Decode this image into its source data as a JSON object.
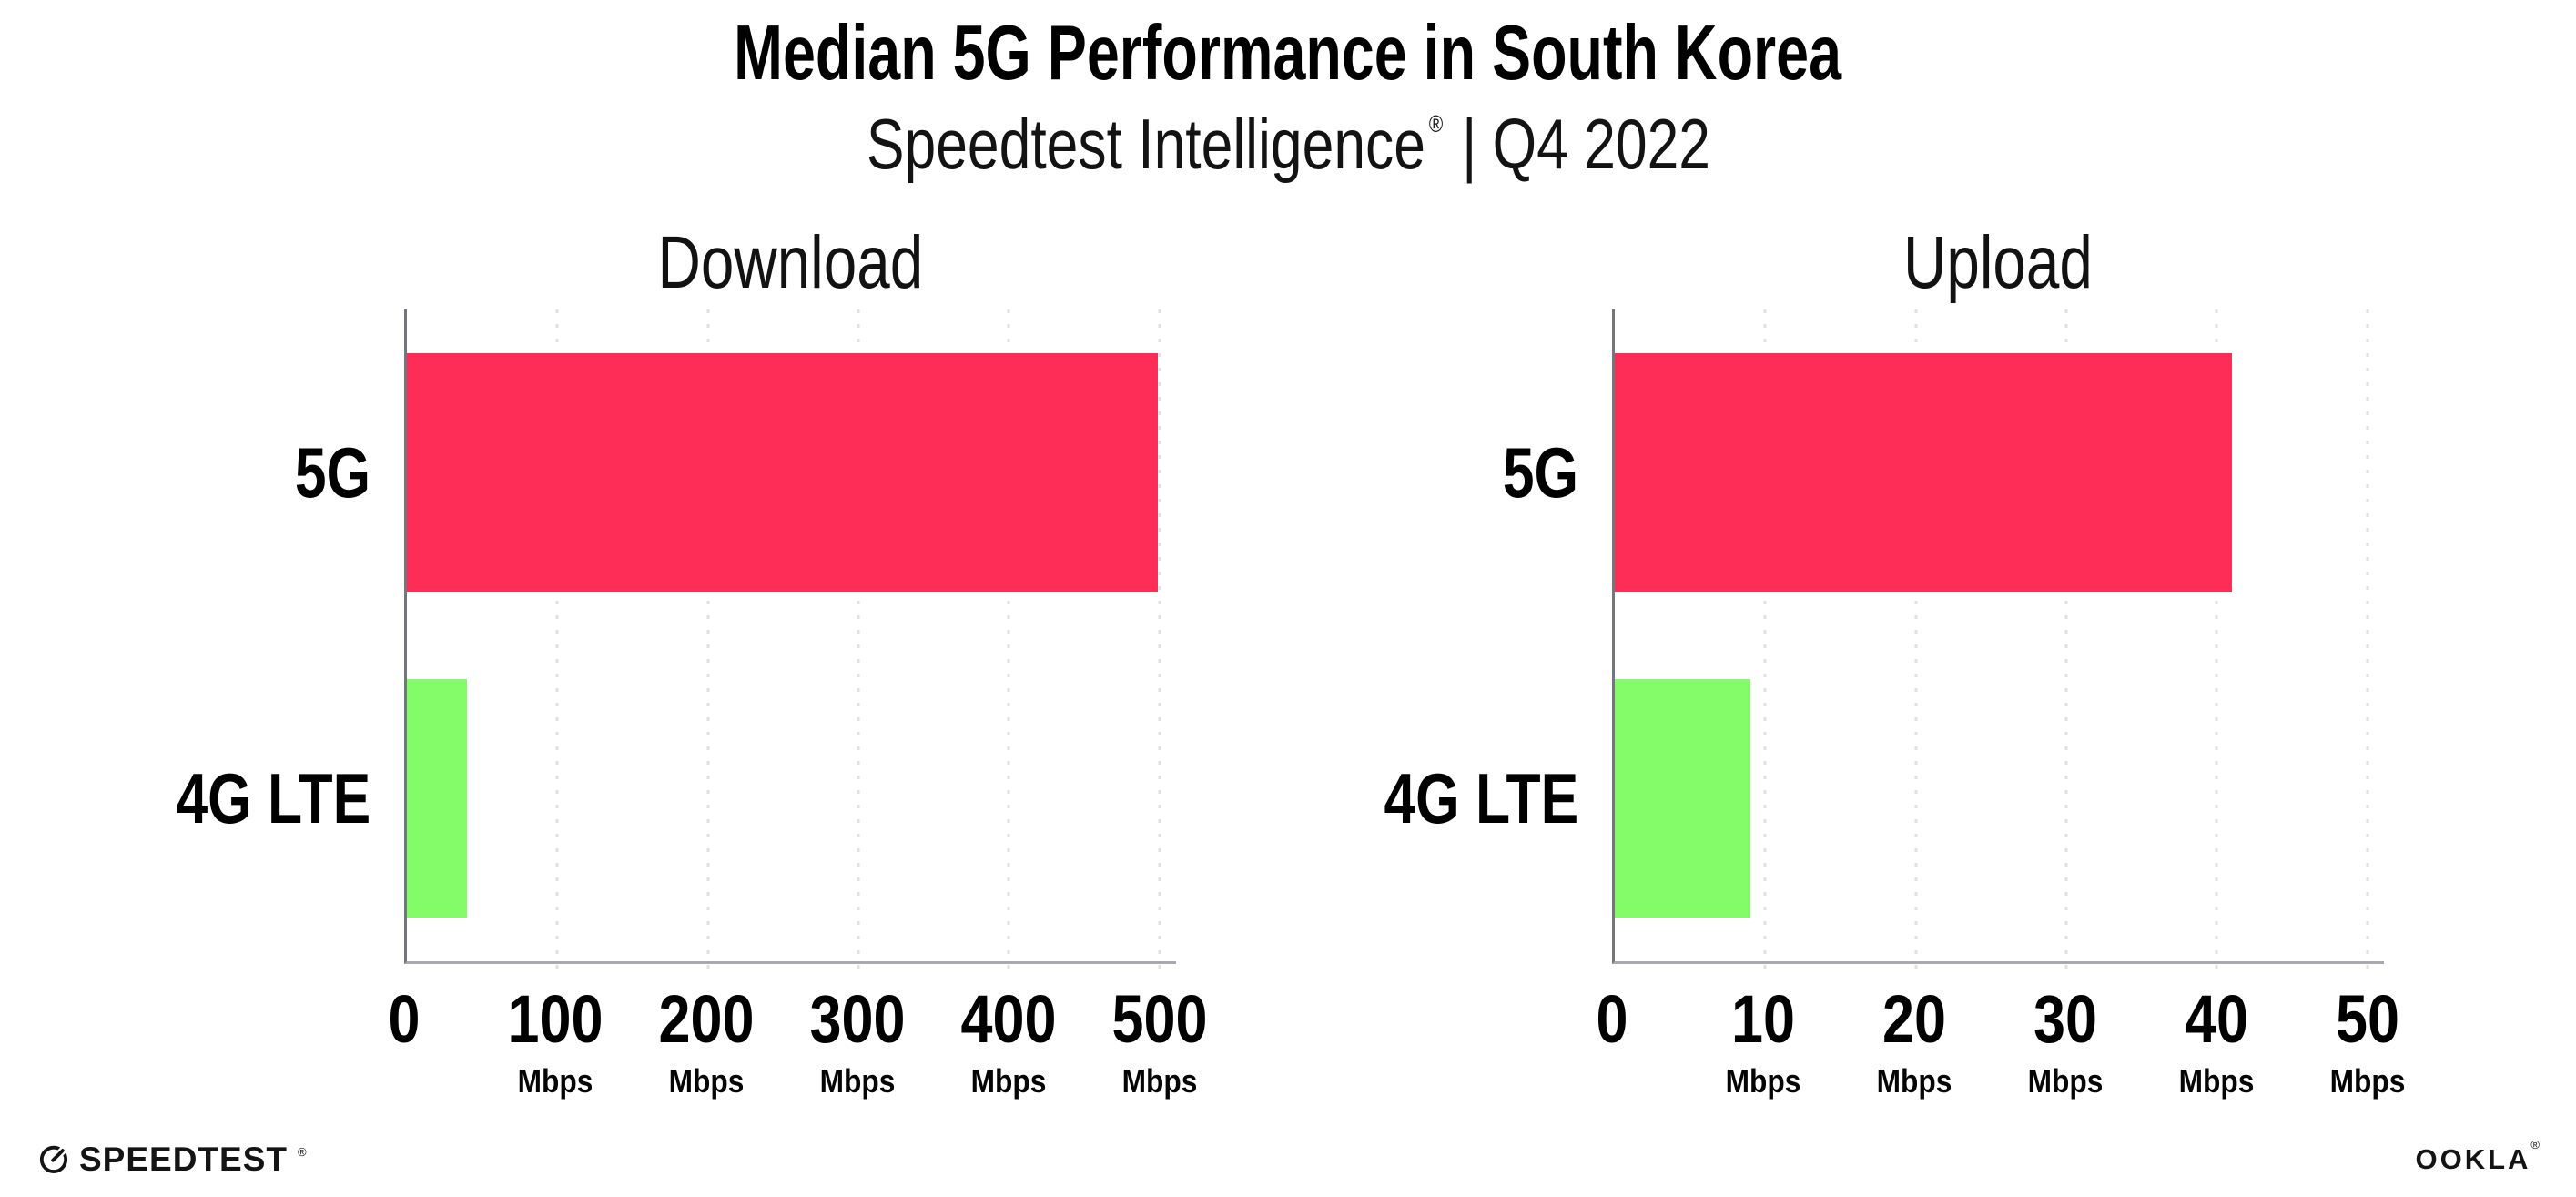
{
  "header": {
    "title": "Median 5G Performance in South Korea",
    "subtitle_brand": "Speedtest Intelligence",
    "subtitle_reg": "®",
    "subtitle_period": "| Q4 2022"
  },
  "chart_data": [
    {
      "type": "bar",
      "orientation": "horizontal",
      "title": "Download",
      "categories": [
        "5G",
        "4G LTE"
      ],
      "values": [
        499,
        40
      ],
      "unit": "Mbps",
      "xticks": [
        0,
        100,
        200,
        300,
        400,
        500
      ],
      "xlim": [
        0,
        511
      ],
      "grid": "dotted-vertical",
      "series_colors": [
        "#FD2D58",
        "#84FB69"
      ]
    },
    {
      "type": "bar",
      "orientation": "horizontal",
      "title": "Upload",
      "categories": [
        "5G",
        "4G LTE"
      ],
      "values": [
        41,
        9
      ],
      "unit": "Mbps",
      "xticks": [
        0,
        10,
        20,
        30,
        40,
        50
      ],
      "xlim": [
        0,
        51.1
      ],
      "grid": "dotted-vertical",
      "series_colors": [
        "#FD2D58",
        "#84FB69"
      ]
    }
  ],
  "colors": {
    "bar_5g": "#FD2D58",
    "bar_4g_lte": "#84FB69",
    "gridline": "#DFDFE8",
    "y_axis_line": "#75757E",
    "x_axis_line": "#A9A9B1"
  },
  "footer": {
    "speedtest_label": "SPEEDTEST",
    "speedtest_mark": "®",
    "ookla_label": "OOKLA",
    "ookla_mark": "®"
  }
}
